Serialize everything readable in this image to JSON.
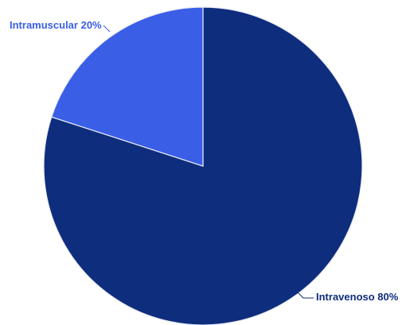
{
  "chart_data": {
    "type": "pie",
    "slices": [
      {
        "label": "Intravenoso",
        "value": 80,
        "display": "Intravenoso 80%",
        "color": "#0f2d7d"
      },
      {
        "label": "Intramuscular",
        "value": 20,
        "display": "Intramuscular 20%",
        "color": "#3a5ee6"
      }
    ],
    "start_angle": "12 o'clock",
    "direction": "clockwise",
    "legend": "none",
    "label_style": "outside with leader lines"
  }
}
